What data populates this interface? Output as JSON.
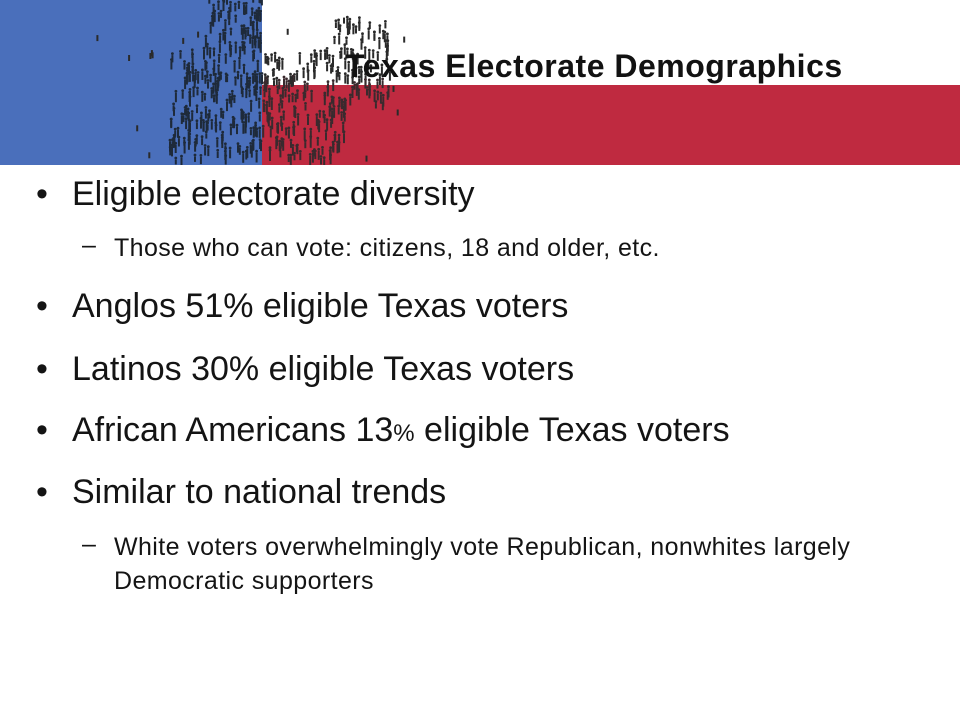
{
  "slide": {
    "title": "Texas Electorate Demographics",
    "colors": {
      "blue": "#4a6fbb",
      "red": "#bf2a40",
      "white": "#ffffff",
      "text": "#141414"
    },
    "banner_image": "crowd-of-people-forming-texas-map",
    "bullets": [
      {
        "text": "Eligible electorate diversity",
        "sub": [
          "Those who can vote: citizens, 18 and older, etc."
        ]
      },
      {
        "text": "Anglos 51% eligible Texas voters"
      },
      {
        "text": "Latinos 30% eligible Texas voters"
      },
      {
        "text_pre": "African Americans 13",
        "text_pct": "%",
        "text_post": " eligible Texas voters"
      },
      {
        "text": "Similar to national trends",
        "sub": [
          "White voters overwhelmingly vote Republican, nonwhites largely Democratic supporters"
        ]
      }
    ]
  }
}
